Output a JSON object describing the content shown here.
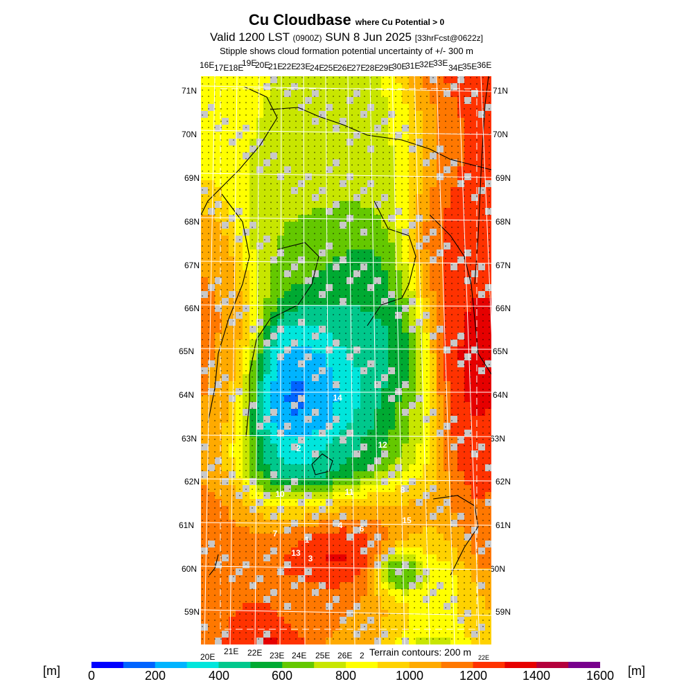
{
  "title": {
    "main": "Cu Cloudbase",
    "qualifier": "where Cu Potential > 0",
    "valid_prefix": "Valid 1200 LST",
    "valid_z": "(0900Z)",
    "valid_date": "SUN 8 Jun 2025",
    "forecast": "[33hrFcst@0622z]",
    "subtitle": "Stipple shows cloud formation potential uncertainty of +/- 300 m"
  },
  "map": {
    "lat_labels": [
      "71N",
      "70N",
      "69N",
      "68N",
      "67N",
      "66N",
      "65N",
      "64N",
      "63N",
      "62N",
      "61N",
      "60N",
      "59N"
    ],
    "lon_labels_top": [
      "16E",
      "17E",
      "18E",
      "19E",
      "20E",
      "21E",
      "22E",
      "23E",
      "24E",
      "25E",
      "26E",
      "27E",
      "28E",
      "29E",
      "30E",
      "31E",
      "32E",
      "33E",
      "34E",
      "35E",
      "36E"
    ],
    "lon_labels_bottom": [
      "20E",
      "21E",
      "22E",
      "23E",
      "24E",
      "25E",
      "26E",
      "2"
    ],
    "corner_label": "22E",
    "terrain_note": "Terrain contours: 200 m",
    "station_numbers": [
      {
        "label": "14"
      },
      {
        "label": "2"
      },
      {
        "label": "12"
      },
      {
        "label": "10"
      },
      {
        "label": "11"
      },
      {
        "label": "8"
      },
      {
        "label": "15"
      },
      {
        "label": "7"
      },
      {
        "label": "4"
      },
      {
        "label": "6"
      },
      {
        "label": "1"
      },
      {
        "label": "13"
      },
      {
        "label": "3"
      }
    ],
    "colors": {
      "no_data": "#c8c8c8",
      "land_outline": "#000000",
      "grid": "#ffffff"
    }
  },
  "colorbar": {
    "unit": "[m]",
    "ticks": [
      "0",
      "200",
      "400",
      "600",
      "800",
      "1000",
      "1200",
      "1400",
      "1600"
    ],
    "bins": [
      {
        "from": 0,
        "to": 100,
        "color": "#0000ff"
      },
      {
        "from": 100,
        "to": 200,
        "color": "#0064ff"
      },
      {
        "from": 200,
        "to": 300,
        "color": "#00b4ff"
      },
      {
        "from": 300,
        "to": 400,
        "color": "#00e6dc"
      },
      {
        "from": 400,
        "to": 500,
        "color": "#00c88c"
      },
      {
        "from": 500,
        "to": 600,
        "color": "#00aa32"
      },
      {
        "from": 600,
        "to": 700,
        "color": "#64c800"
      },
      {
        "from": 700,
        "to": 800,
        "color": "#c8e600"
      },
      {
        "from": 800,
        "to": 900,
        "color": "#ffff00"
      },
      {
        "from": 900,
        "to": 1000,
        "color": "#ffd200"
      },
      {
        "from": 1000,
        "to": 1100,
        "color": "#ffaa00"
      },
      {
        "from": 1100,
        "to": 1200,
        "color": "#ff7800"
      },
      {
        "from": 1200,
        "to": 1300,
        "color": "#ff3200"
      },
      {
        "from": 1300,
        "to": 1400,
        "color": "#e60000"
      },
      {
        "from": 1400,
        "to": 1500,
        "color": "#b4003c"
      },
      {
        "from": 1500,
        "to": 1600,
        "color": "#78008c"
      }
    ]
  }
}
